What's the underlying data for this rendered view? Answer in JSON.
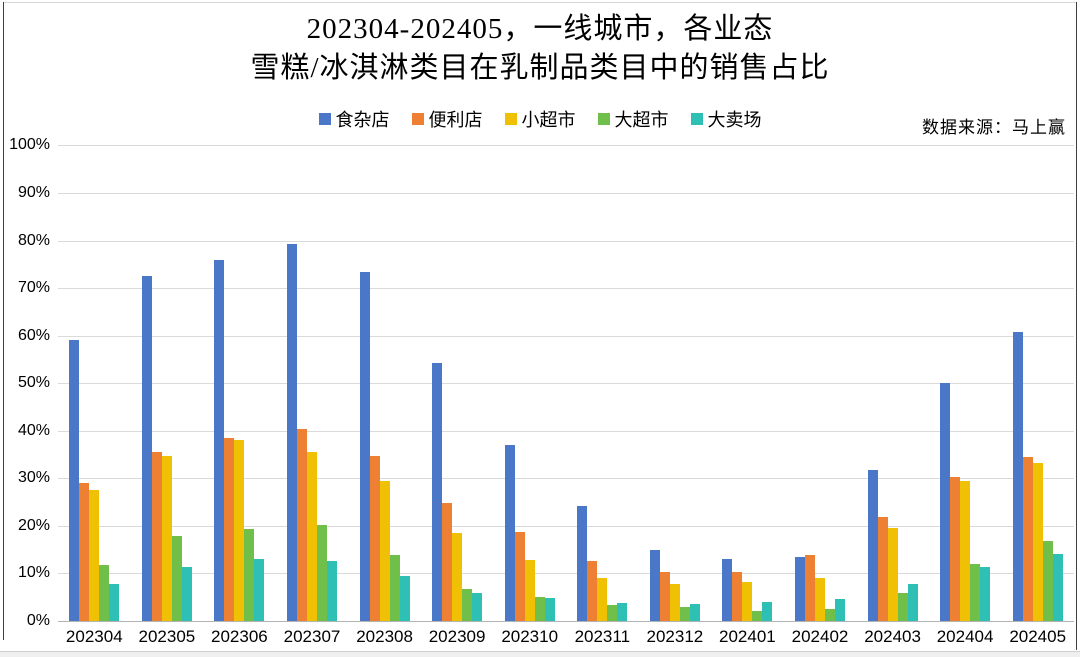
{
  "title": {
    "line1": "202304-202405，一线城市，各业态",
    "line2": "雪糕/冰淇淋类目在乳制品类目中的销售占比"
  },
  "source_note": "数据来源：马上赢",
  "chart_data": {
    "type": "bar",
    "title": "202304-202405，一线城市，各业态 雪糕/冰淇淋类目在乳制品类目中的销售占比",
    "xlabel": "",
    "ylabel": "",
    "ylim": [
      0,
      100
    ],
    "ytick_step": 10,
    "y_tick_labels": [
      "0%",
      "10%",
      "20%",
      "30%",
      "40%",
      "50%",
      "60%",
      "70%",
      "80%",
      "90%",
      "100%"
    ],
    "grid": true,
    "legend_position": "top-center",
    "categories": [
      "202304",
      "202305",
      "202306",
      "202307",
      "202308",
      "202309",
      "202310",
      "202311",
      "202312",
      "202401",
      "202402",
      "202403",
      "202404",
      "202405"
    ],
    "series": [
      {
        "name": "食杂店",
        "color": "#4A77C8",
        "values": [
          59.0,
          72.5,
          76.0,
          79.2,
          73.3,
          54.3,
          37.0,
          24.1,
          15.0,
          13.0,
          13.4,
          31.7,
          50.0,
          60.8
        ]
      },
      {
        "name": "便利店",
        "color": "#ED8033",
        "values": [
          29.0,
          35.6,
          38.5,
          40.3,
          34.6,
          24.8,
          18.8,
          12.6,
          10.3,
          10.4,
          13.9,
          21.8,
          30.2,
          34.5
        ]
      },
      {
        "name": "小超市",
        "color": "#EFC003",
        "values": [
          27.5,
          34.6,
          38.0,
          35.5,
          29.5,
          18.6,
          12.8,
          9.0,
          7.8,
          8.2,
          9.1,
          19.5,
          29.4,
          33.2
        ]
      },
      {
        "name": "大超市",
        "color": "#71BF4B",
        "values": [
          11.8,
          17.9,
          19.3,
          20.1,
          13.9,
          6.7,
          5.1,
          3.4,
          3.0,
          2.1,
          2.5,
          6.0,
          12.1,
          16.8
        ]
      },
      {
        "name": "大卖场",
        "color": "#2FC0B5",
        "values": [
          7.8,
          11.4,
          13.1,
          12.6,
          9.5,
          5.8,
          4.8,
          3.8,
          3.6,
          4.1,
          4.6,
          7.8,
          11.4,
          14.0
        ]
      }
    ]
  }
}
